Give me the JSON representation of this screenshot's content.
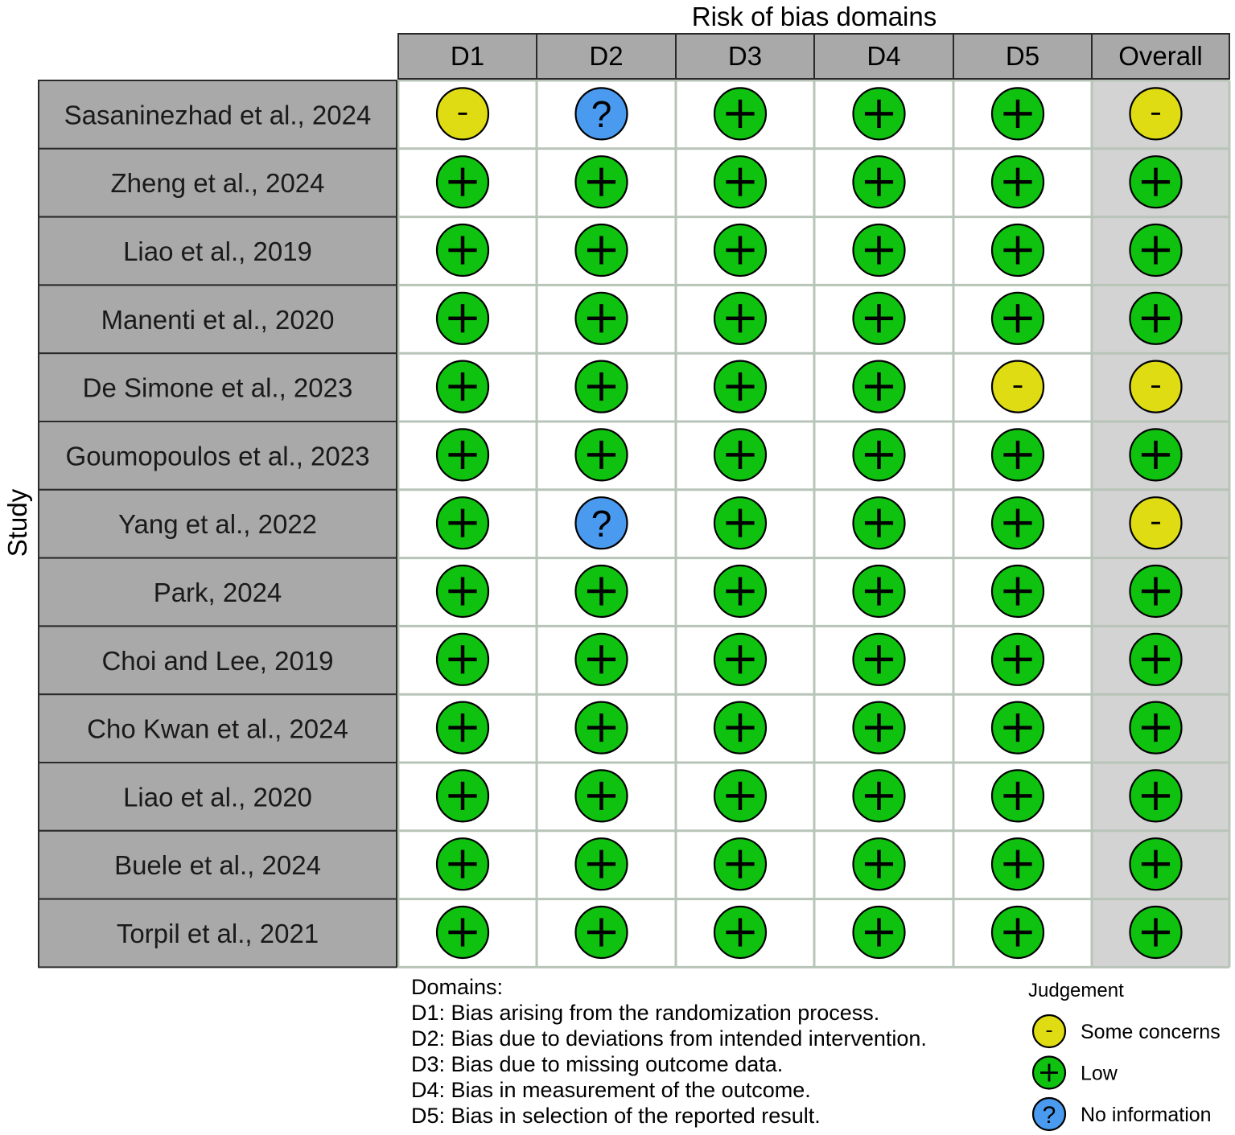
{
  "chart_data": {
    "type": "table",
    "title": "Risk of bias domains",
    "ylabel": "Study",
    "columns": [
      "D1",
      "D2",
      "D3",
      "D4",
      "D5",
      "Overall"
    ],
    "studies": [
      "Sasaninezhad et al., 2024",
      "Zheng et al., 2024",
      "Liao et al., 2019",
      "Manenti et al., 2020",
      "De Simone et al., 2023",
      "Goumopoulos et al., 2023",
      "Yang et al., 2022",
      "Park, 2024",
      "Choi and Lee, 2019",
      "Cho Kwan et al., 2024",
      "Liao et al., 2020",
      "Buele et al., 2024",
      "Torpil et al., 2021"
    ],
    "judgements": [
      [
        "some",
        "noinfo",
        "low",
        "low",
        "low",
        "some"
      ],
      [
        "low",
        "low",
        "low",
        "low",
        "low",
        "low"
      ],
      [
        "low",
        "low",
        "low",
        "low",
        "low",
        "low"
      ],
      [
        "low",
        "low",
        "low",
        "low",
        "low",
        "low"
      ],
      [
        "low",
        "low",
        "low",
        "low",
        "some",
        "some"
      ],
      [
        "low",
        "low",
        "low",
        "low",
        "low",
        "low"
      ],
      [
        "low",
        "noinfo",
        "low",
        "low",
        "low",
        "some"
      ],
      [
        "low",
        "low",
        "low",
        "low",
        "low",
        "low"
      ],
      [
        "low",
        "low",
        "low",
        "low",
        "low",
        "low"
      ],
      [
        "low",
        "low",
        "low",
        "low",
        "low",
        "low"
      ],
      [
        "low",
        "low",
        "low",
        "low",
        "low",
        "low"
      ],
      [
        "low",
        "low",
        "low",
        "low",
        "low",
        "low"
      ],
      [
        "low",
        "low",
        "low",
        "low",
        "low",
        "low"
      ]
    ],
    "domains_title": "Domains:",
    "domain_descriptions": [
      "D1: Bias arising from the randomization process.",
      "D2: Bias due to deviations from intended intervention.",
      "D3: Bias due to missing outcome data.",
      "D4: Bias in measurement of the outcome.",
      "D5: Bias in selection of the reported result."
    ],
    "legend": {
      "title": "Judgement",
      "items": [
        {
          "key": "some",
          "symbol": "-",
          "label": "Some concerns",
          "color": "#e0dc14"
        },
        {
          "key": "low",
          "symbol": "+",
          "label": "Low",
          "color": "#0fc20f"
        },
        {
          "key": "noinfo",
          "symbol": "?",
          "label": "No information",
          "color": "#4a9af0"
        }
      ]
    },
    "colors": {
      "header_bg": "#a9a9a9",
      "study_bg": "#a9a9a9",
      "overall_bg": "#d3d3d3",
      "cell_bg": "#ffffff",
      "grid": "#b8c4b8"
    }
  }
}
